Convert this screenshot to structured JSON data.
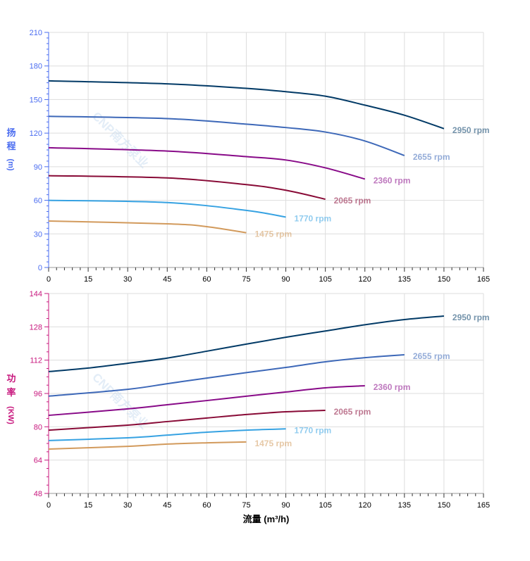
{
  "watermark": "CNP南方泵业",
  "colors": {
    "head_axis": "#4a6cf0",
    "power_axis": "#c8187e",
    "grid": "#dddddd"
  },
  "chart_data": [
    {
      "type": "line",
      "title": "",
      "xlabel": "流量 (m³/h)",
      "ylabel": [
        "扬",
        "程",
        "(m)"
      ],
      "xlim": [
        0,
        165
      ],
      "ylim": [
        0,
        210
      ],
      "xticks": [
        0,
        15,
        30,
        45,
        60,
        75,
        90,
        105,
        120,
        135,
        150,
        165
      ],
      "yticks": [
        0,
        30,
        60,
        90,
        120,
        150,
        180,
        210
      ],
      "grid": true,
      "series": [
        {
          "name": "2950 rpm",
          "color": "#023a66",
          "x": [
            0,
            45,
            75,
            90,
            105,
            120,
            135,
            150
          ],
          "y": [
            166.7,
            164,
            160,
            157,
            153,
            145,
            136,
            124
          ]
        },
        {
          "name": "2655 rpm",
          "color": "#3d68b8",
          "x": [
            0,
            45,
            75,
            90,
            105,
            120,
            135
          ],
          "y": [
            135,
            133,
            128,
            125,
            121,
            113,
            100
          ]
        },
        {
          "name": "2360 rpm",
          "color": "#880a88",
          "x": [
            0,
            45,
            75,
            90,
            105,
            120
          ],
          "y": [
            107,
            104,
            99,
            96,
            89,
            79
          ]
        },
        {
          "name": "2065 rpm",
          "color": "#880a36",
          "x": [
            0,
            45,
            75,
            90,
            105
          ],
          "y": [
            82,
            80,
            74,
            69,
            61
          ]
        },
        {
          "name": "1770 rpm",
          "color": "#36a2e2",
          "x": [
            0,
            45,
            75,
            90
          ],
          "y": [
            60,
            58,
            51,
            45
          ]
        },
        {
          "name": "1475 rpm",
          "color": "#d29a5c",
          "x": [
            0,
            45,
            60,
            75
          ],
          "y": [
            41.5,
            39,
            36.5,
            31
          ]
        }
      ]
    },
    {
      "type": "line",
      "title": "",
      "xlabel": "流量 (m³/h)",
      "ylabel": [
        "功",
        "率",
        "(KW)"
      ],
      "xlim": [
        0,
        165
      ],
      "ylim": [
        48,
        144
      ],
      "xticks": [
        0,
        15,
        30,
        45,
        60,
        75,
        90,
        105,
        120,
        135,
        150,
        165
      ],
      "yticks": [
        48,
        64,
        80,
        96,
        112,
        128,
        144
      ],
      "grid": true,
      "series": [
        {
          "name": "2950 rpm",
          "color": "#023a66",
          "x": [
            0,
            15,
            30,
            45,
            60,
            75,
            90,
            105,
            120,
            135,
            150
          ],
          "y": [
            106.5,
            108.2,
            110.5,
            113,
            116.3,
            119.7,
            123,
            126,
            129,
            131.5,
            133.2
          ]
        },
        {
          "name": "2655 rpm",
          "color": "#3d68b8",
          "x": [
            0,
            30,
            45,
            60,
            75,
            90,
            105,
            120,
            135
          ],
          "y": [
            94.7,
            98,
            100.7,
            103.4,
            106,
            108.5,
            111.2,
            113.2,
            114.6
          ]
        },
        {
          "name": "2360 rpm",
          "color": "#880a88",
          "x": [
            0,
            30,
            45,
            60,
            75,
            90,
            105,
            120
          ],
          "y": [
            85.5,
            88.6,
            90.6,
            92.6,
            94.7,
            96.7,
            98.7,
            99.7
          ]
        },
        {
          "name": "2065 rpm",
          "color": "#880a36",
          "x": [
            0,
            30,
            45,
            60,
            75,
            90,
            105
          ],
          "y": [
            78.4,
            80.8,
            82.5,
            84.2,
            85.9,
            87.2,
            87.9
          ]
        },
        {
          "name": "1770 rpm",
          "color": "#36a2e2",
          "x": [
            0,
            30,
            45,
            60,
            75,
            90
          ],
          "y": [
            73.4,
            74.7,
            76,
            77.4,
            78.4,
            79
          ]
        },
        {
          "name": "1475 rpm",
          "color": "#d29a5c",
          "x": [
            0,
            30,
            45,
            60,
            75
          ],
          "y": [
            69.3,
            70.6,
            71.7,
            72.3,
            72.7
          ]
        }
      ]
    }
  ]
}
